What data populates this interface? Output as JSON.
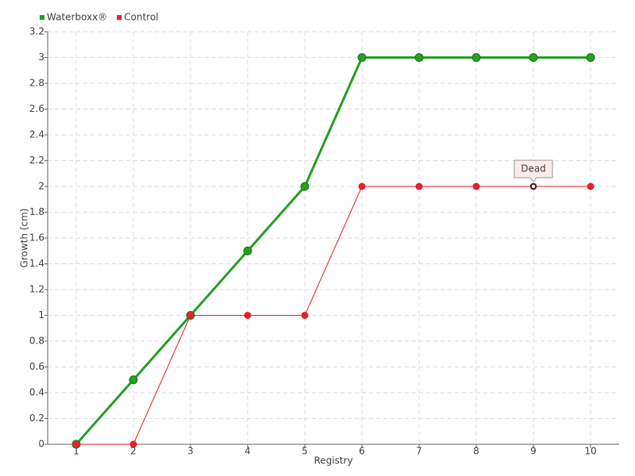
{
  "chart_data": {
    "type": "line",
    "x_label": "Registry",
    "y_label": "Growth (cm)",
    "categories": [
      "1",
      "2",
      "3",
      "4",
      "5",
      "6",
      "7",
      "8",
      "9",
      "10"
    ],
    "series": [
      {
        "name": "Waterboxx®",
        "color": "#25a025",
        "values": [
          0,
          0.5,
          1,
          1.5,
          2,
          3,
          3,
          3,
          3,
          3
        ]
      },
      {
        "name": "Control",
        "color": "#e8202a",
        "values": [
          0,
          0,
          1,
          1,
          1,
          2,
          2,
          2,
          2,
          2
        ]
      }
    ],
    "ylim": [
      0,
      3.2
    ],
    "yticks": [
      0,
      0.2,
      0.4,
      0.6,
      0.8,
      1,
      1.2,
      1.4,
      1.6,
      1.8,
      2,
      2.2,
      2.4,
      2.6,
      2.8,
      3,
      3.2
    ],
    "grid": true,
    "legend": "top-left",
    "annotation": {
      "text": "Dead",
      "x": "9",
      "y": 2
    }
  }
}
